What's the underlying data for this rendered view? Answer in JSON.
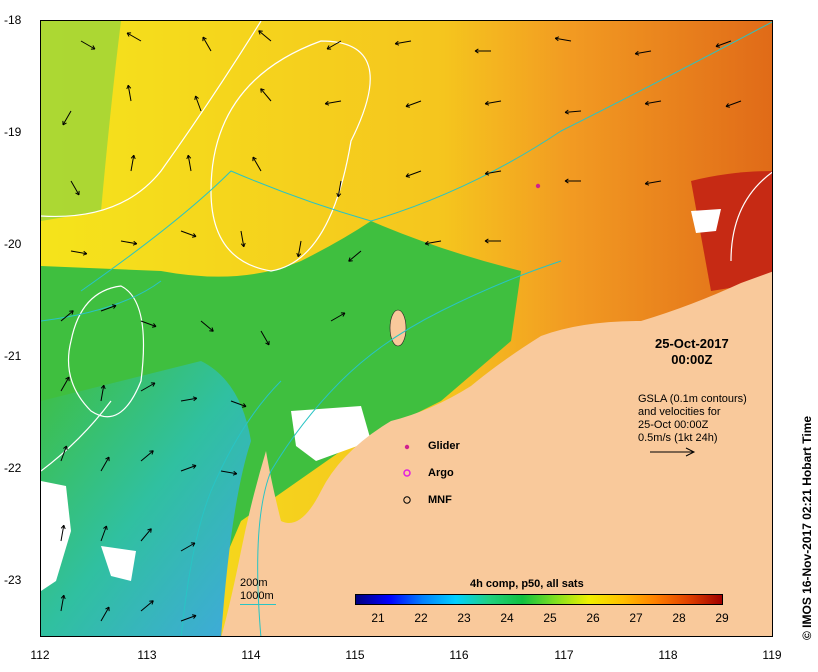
{
  "date": {
    "line1": "25-Oct-2017",
    "line2": "00:00Z"
  },
  "info": {
    "line1": "GSLA (0.1m contours)",
    "line2": "and velocities for",
    "line3": "25-Oct 00:00Z",
    "line4": "0.5m/s (1kt 24h)"
  },
  "legend": {
    "glider": "Glider",
    "argo": "Argo",
    "mnf": "MNF",
    "glider_color": "#d0208f",
    "argo_color": "#e020e0"
  },
  "contour_legend": {
    "shallow": "200m",
    "deep": "1000m",
    "deep_color": "#29c4c4"
  },
  "colorbar": {
    "title": "4h comp, p50, all sats",
    "labels": [
      "21",
      "22",
      "23",
      "24",
      "25",
      "26",
      "27",
      "28",
      "29"
    ],
    "colors": [
      "#00007f",
      "#0000ff",
      "#0080ff",
      "#00d0ff",
      "#20d080",
      "#10c040",
      "#80e020",
      "#f0f000",
      "#ffc000",
      "#ff8000",
      "#e04000",
      "#a00000"
    ]
  },
  "axes": {
    "x_ticks": [
      "112",
      "113",
      "114",
      "115",
      "116",
      "117",
      "118",
      "119"
    ],
    "y_ticks": [
      "-18",
      "-19",
      "-20",
      "-21",
      "-22",
      "-23"
    ],
    "lon_range": [
      112,
      119
    ],
    "lat_range": [
      -23.5,
      -18
    ]
  },
  "map_colors": {
    "land": "#f9c99b",
    "warm": "#f29b22",
    "hot": "#c62a14",
    "mid": "#f5e41b",
    "cool": "#3fbf3f",
    "cold": "#40a8e0"
  },
  "credit": "© IMOS 16-Nov-2017 02:21 Hobart Time"
}
